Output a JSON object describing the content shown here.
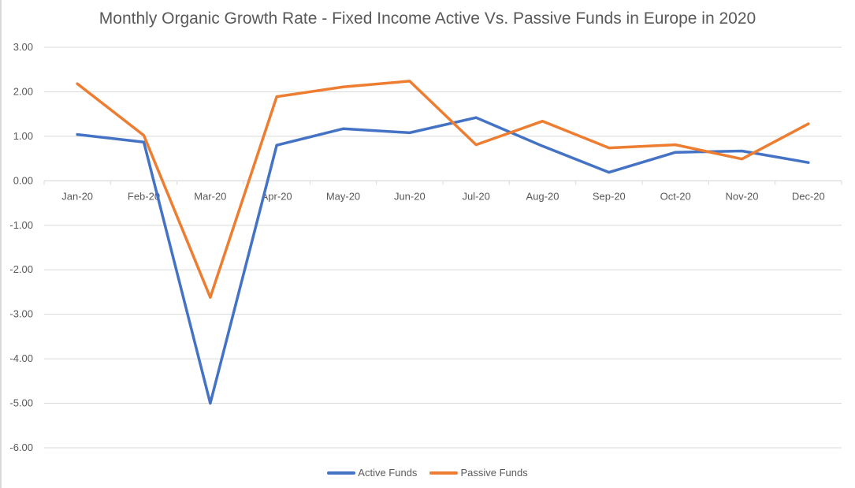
{
  "chart_data": {
    "type": "line",
    "title": "Monthly Organic Growth Rate - Fixed Income Active Vs. Passive Funds in Europe in 2020",
    "xlabel": "",
    "ylabel": "",
    "categories": [
      "Jan-20",
      "Feb-20",
      "Mar-20",
      "Apr-20",
      "May-20",
      "Jun-20",
      "Jul-20",
      "Aug-20",
      "Sep-20",
      "Oct-20",
      "Nov-20",
      "Dec-20"
    ],
    "ylim": [
      -6,
      3
    ],
    "yticks": [
      "3.00",
      "2.00",
      "1.00",
      "0.00",
      "-1.00",
      "-2.00",
      "-3.00",
      "-4.00",
      "-5.00",
      "-6.00"
    ],
    "ytick_values": [
      3,
      2,
      1,
      0,
      -1,
      -2,
      -3,
      -4,
      -5,
      -6
    ],
    "grid": true,
    "legend_position": "bottom",
    "series": [
      {
        "name": "Active Funds",
        "color": "#4472c4",
        "values": [
          1.04,
          0.87,
          -5.0,
          0.8,
          1.17,
          1.08,
          1.42,
          0.78,
          0.19,
          0.64,
          0.67,
          0.41
        ]
      },
      {
        "name": "Passive Funds",
        "color": "#ed7d31",
        "values": [
          2.18,
          1.02,
          -2.62,
          1.89,
          2.11,
          2.24,
          0.81,
          1.34,
          0.74,
          0.81,
          0.49,
          1.28
        ]
      }
    ]
  }
}
